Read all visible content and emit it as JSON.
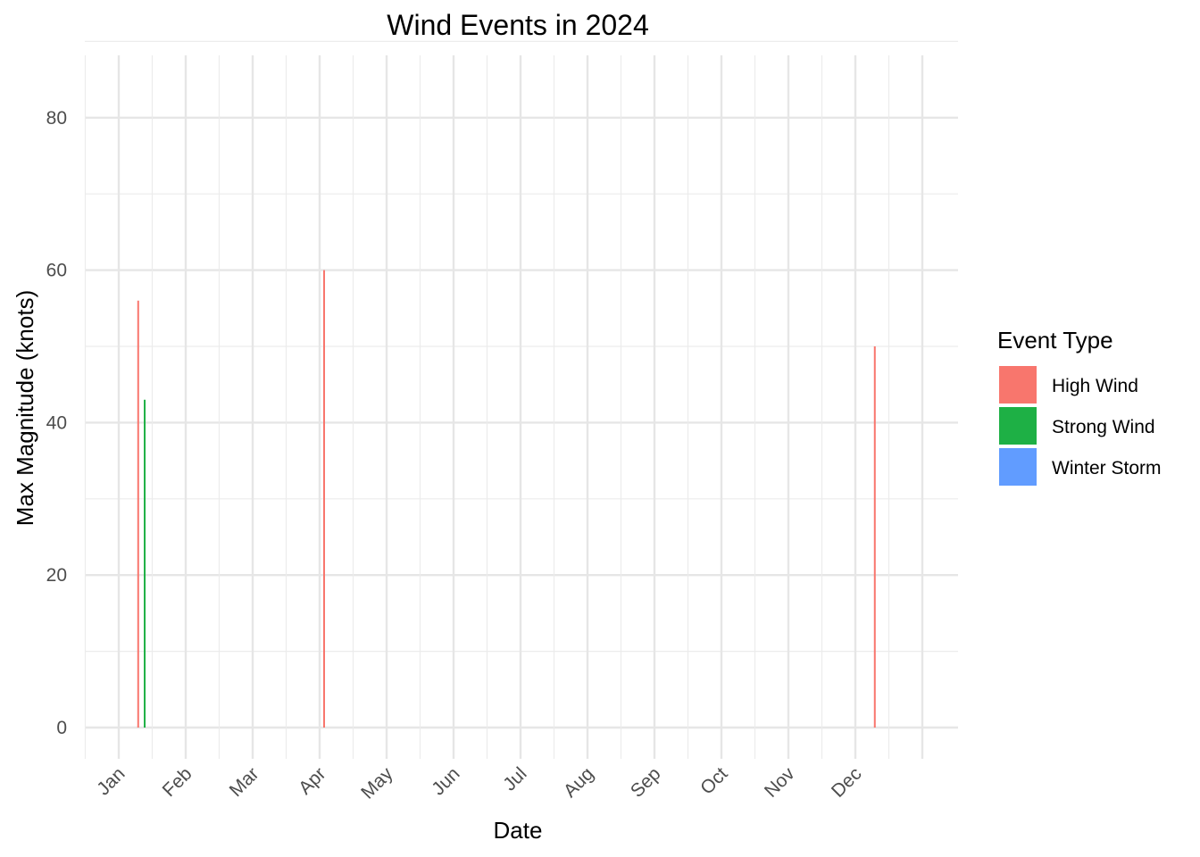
{
  "chart_data": {
    "type": "bar",
    "title": "Wind Events in 2024",
    "xlabel": "Date",
    "ylabel": "Max Magnitude (knots)",
    "x_ticks": [
      "Jan",
      "Feb",
      "Mar",
      "Apr",
      "May",
      "Jun",
      "Jul",
      "Aug",
      "Sep",
      "Oct",
      "Nov",
      "Dec"
    ],
    "y_ticks": [
      0,
      20,
      40,
      60,
      80
    ],
    "ylim": [
      0,
      85
    ],
    "grid": true,
    "legend": {
      "title": "Event Type",
      "position": "right",
      "entries": [
        {
          "name": "High Wind",
          "color": "#F8766D"
        },
        {
          "name": "Strong Wind",
          "color": "#1EB045"
        },
        {
          "name": "Winter Storm",
          "color": "#619CFF"
        }
      ]
    },
    "series": [
      {
        "name": "High Wind",
        "color": "#F8766D",
        "points": [
          {
            "date": "2024-01-10",
            "value": 56
          },
          {
            "date": "2024-04-03",
            "value": 60
          },
          {
            "date": "2024-12-10",
            "value": 50
          }
        ]
      },
      {
        "name": "Strong Wind",
        "color": "#1EB045",
        "points": [
          {
            "date": "2024-01-13",
            "value": 43
          }
        ]
      },
      {
        "name": "Winter Storm",
        "color": "#619CFF",
        "points": []
      }
    ]
  }
}
